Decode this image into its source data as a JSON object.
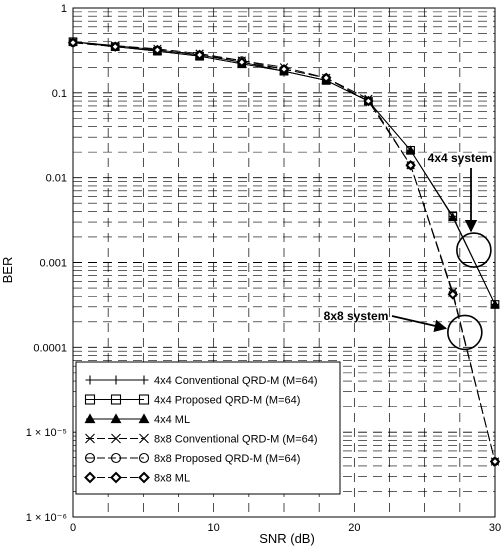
{
  "chart_data": {
    "type": "line",
    "xlabel": "SNR (dB)",
    "ylabel": "BER",
    "xlim": [
      0,
      30
    ],
    "ylim_log10": [
      -6,
      0
    ],
    "yscale": "log",
    "grid": "dashed",
    "x_ticks": [
      0,
      10,
      20,
      30
    ],
    "y_ticks": [
      {
        "value": 1,
        "label": "1"
      },
      {
        "value": 0.1,
        "label": "0.1"
      },
      {
        "value": 0.01,
        "label": "0.01"
      },
      {
        "value": 0.001,
        "label": "0.001"
      },
      {
        "value": 0.0001,
        "label": "0.0001"
      },
      {
        "value": 1e-05,
        "label": "1 × 10⁻⁵"
      },
      {
        "value": 1e-06,
        "label": "1 × 10⁻⁶"
      }
    ],
    "legend_position": "bottom-left",
    "x": [
      0,
      3,
      6,
      9,
      12,
      15,
      18,
      21,
      24,
      27,
      30
    ],
    "series": [
      {
        "name": "4x4 Conventional QRD-M (M=64)",
        "marker": "plus",
        "values": [
          0.4,
          0.36,
          0.32,
          0.28,
          0.23,
          0.18,
          0.14,
          0.08,
          0.021,
          0.0035,
          0.00032
        ]
      },
      {
        "name": "4x4 Proposed QRD-M (M=64)",
        "marker": "square",
        "values": [
          0.4,
          0.35,
          0.31,
          0.27,
          0.22,
          0.18,
          0.14,
          0.08,
          0.021,
          0.0035,
          0.00032
        ]
      },
      {
        "name": "4x4 ML",
        "marker": "triangle",
        "values": [
          0.4,
          0.35,
          0.31,
          0.27,
          0.22,
          0.18,
          0.14,
          0.08,
          0.021,
          0.0034,
          0.00032
        ]
      },
      {
        "name": "8x8 Conventional QRD-M (M=64)",
        "marker": "x",
        "values": [
          0.4,
          0.36,
          0.33,
          0.29,
          0.24,
          0.2,
          0.15,
          0.085,
          0.014,
          0.00045,
          4.5e-06
        ]
      },
      {
        "name": "8x8 Proposed QRD-M (M=64)",
        "marker": "circle",
        "values": [
          0.39,
          0.35,
          0.32,
          0.28,
          0.24,
          0.19,
          0.15,
          0.08,
          0.014,
          0.00043,
          4.5e-06
        ]
      },
      {
        "name": "8x8 ML",
        "marker": "diamond",
        "values": [
          0.39,
          0.35,
          0.32,
          0.28,
          0.23,
          0.19,
          0.15,
          0.08,
          0.014,
          0.00042,
          4.5e-06
        ]
      }
    ],
    "annotations": [
      {
        "text": "4x4 system",
        "target": {
          "x": 28,
          "y": 0.0014
        }
      },
      {
        "text": "8x8 system",
        "target": {
          "x": 27.5,
          "y": 0.00015
        }
      }
    ]
  }
}
